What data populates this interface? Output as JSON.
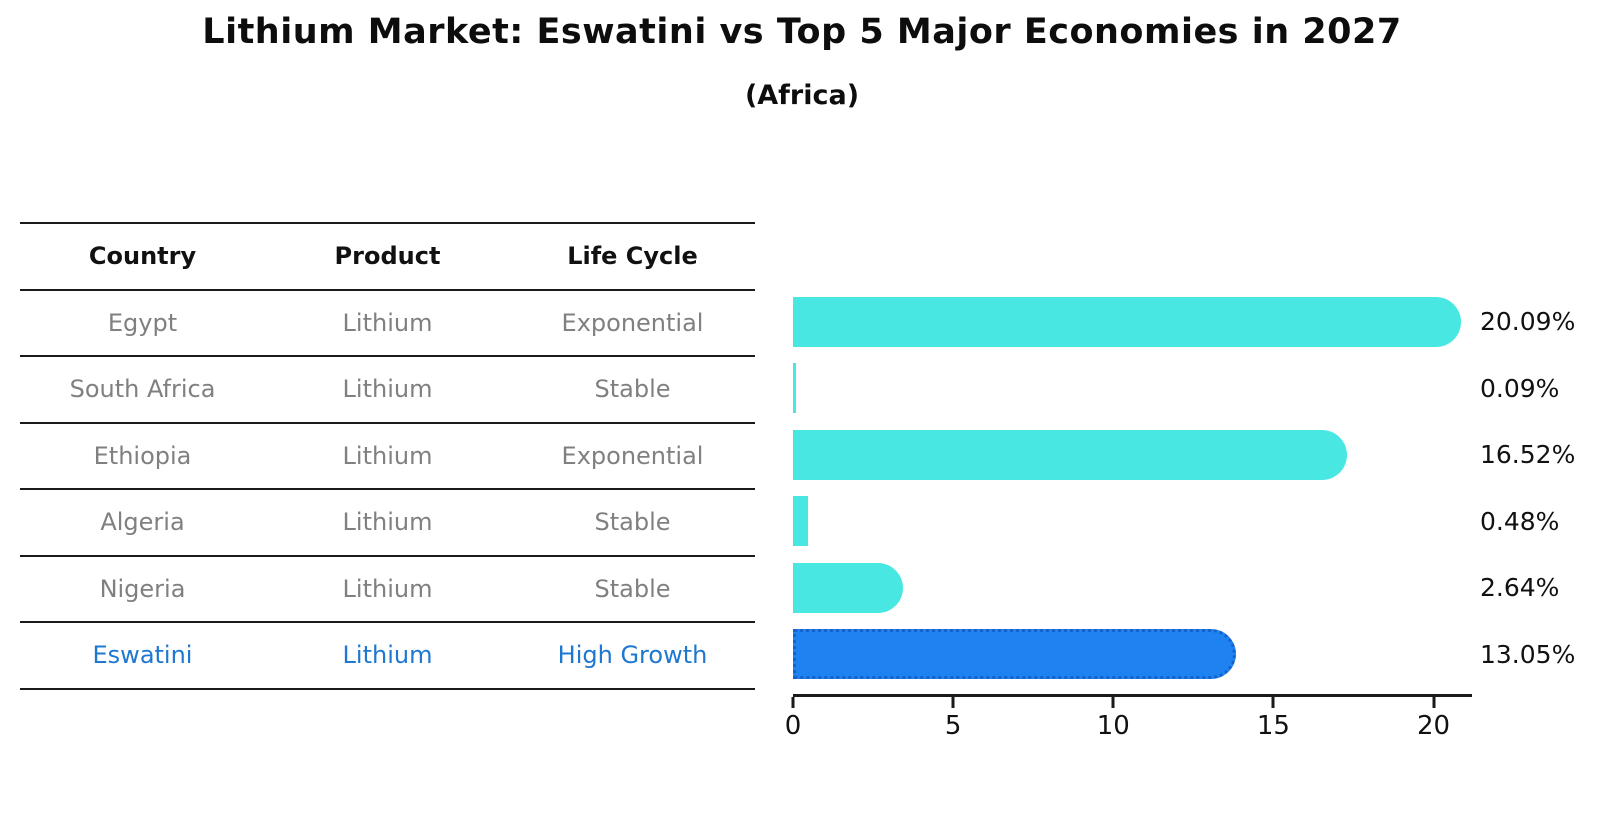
{
  "title": "Lithium Market: Eswatini vs Top 5 Major Economies in 2027",
  "subtitle": "(Africa)",
  "table": {
    "headers": [
      "Country",
      "Product",
      "Life Cycle"
    ],
    "rows": [
      {
        "country": "Egypt",
        "product": "Lithium",
        "life_cycle": "Exponential",
        "highlight": false
      },
      {
        "country": "South Africa",
        "product": "Lithium",
        "life_cycle": "Stable",
        "highlight": false
      },
      {
        "country": "Ethiopia",
        "product": "Lithium",
        "life_cycle": "Exponential",
        "highlight": false
      },
      {
        "country": "Algeria",
        "product": "Lithium",
        "life_cycle": "Stable",
        "highlight": false
      },
      {
        "country": "Nigeria",
        "product": "Lithium",
        "life_cycle": "Stable",
        "highlight": false
      },
      {
        "country": "Eswatini",
        "product": "Lithium",
        "life_cycle": "High Growth",
        "highlight": true
      }
    ]
  },
  "chart_data": {
    "type": "bar",
    "orientation": "horizontal",
    "title": "Lithium Market: Eswatini vs Top 5 Major Economies in 2027",
    "subtitle": "(Africa)",
    "categories": [
      "Egypt",
      "South Africa",
      "Ethiopia",
      "Algeria",
      "Nigeria",
      "Eswatini"
    ],
    "values": [
      20.09,
      0.09,
      16.52,
      0.48,
      2.64,
      13.05
    ],
    "value_labels": [
      "20.09%",
      "0.09%",
      "16.52%",
      "0.48%",
      "2.64%",
      "13.05%"
    ],
    "unit": "%",
    "x_ticks": [
      0,
      5,
      10,
      15,
      20
    ],
    "xlim": [
      0,
      21.2
    ],
    "grid": false,
    "legend": false,
    "highlight_index": 5,
    "colors": {
      "bar": "#48E7E2",
      "highlight_bar": "#1E82F0",
      "highlight_border": "#1462CC",
      "highlight_text": "#1E77D0",
      "row_text": "#808080",
      "axis": "#1a1a1a",
      "label_text": "#111111"
    }
  }
}
